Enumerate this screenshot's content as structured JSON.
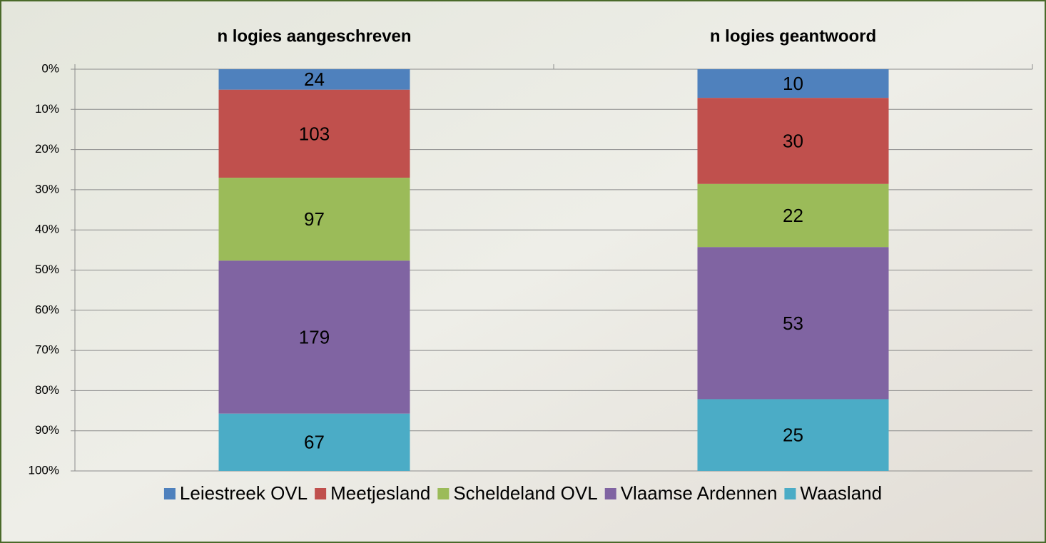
{
  "chart_data": {
    "type": "bar",
    "stacked": "percent",
    "y_inverted": true,
    "grid": true,
    "categories": [
      "n logies aangeschreven",
      "n logies geantwoord"
    ],
    "series": [
      {
        "name": "Leiestreek OVL",
        "color": "#4f81bd",
        "values": [
          24,
          10
        ]
      },
      {
        "name": "Meetjesland",
        "color": "#c0504d",
        "values": [
          103,
          30
        ]
      },
      {
        "name": "Scheldeland OVL",
        "color": "#9bbb59",
        "values": [
          97,
          22
        ]
      },
      {
        "name": "Vlaamse Ardennen",
        "color": "#8064a2",
        "values": [
          179,
          53
        ]
      },
      {
        "name": "Waasland",
        "color": "#4bacc6",
        "values": [
          67,
          25
        ]
      }
    ],
    "ylim": [
      0,
      100
    ],
    "yticks": [
      {
        "value": 0,
        "label": "0%"
      },
      {
        "value": 10,
        "label": "10%"
      },
      {
        "value": 20,
        "label": "20%"
      },
      {
        "value": 30,
        "label": "30%"
      },
      {
        "value": 40,
        "label": "40%"
      },
      {
        "value": 50,
        "label": "50%"
      },
      {
        "value": 60,
        "label": "60%"
      },
      {
        "value": 70,
        "label": "70%"
      },
      {
        "value": 80,
        "label": "80%"
      },
      {
        "value": 90,
        "label": "90%"
      },
      {
        "value": 100,
        "label": "100%"
      }
    ],
    "legend": "bottom"
  }
}
